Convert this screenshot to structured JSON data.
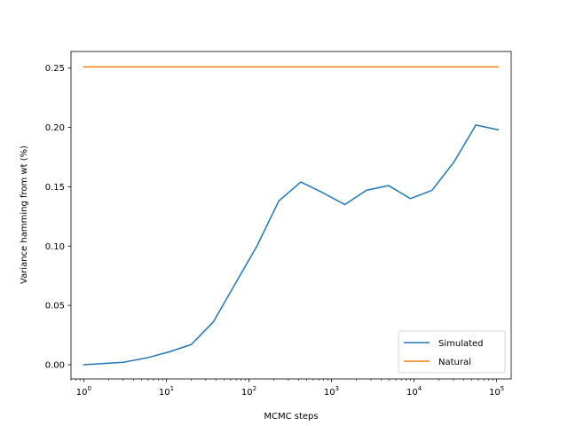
{
  "chart_data": {
    "type": "line",
    "xlabel": "MCMC steps",
    "ylabel": "Variance hamming from wt (%)",
    "xscale": "log",
    "xlim": [
      0.7,
      150000
    ],
    "ylim": [
      -0.012,
      0.264
    ],
    "x_ticks": [
      {
        "value": 1,
        "base": "10",
        "exp": "0"
      },
      {
        "value": 10,
        "base": "10",
        "exp": "1"
      },
      {
        "value": 100,
        "base": "10",
        "exp": "2"
      },
      {
        "value": 1000,
        "base": "10",
        "exp": "3"
      },
      {
        "value": 10000,
        "base": "10",
        "exp": "4"
      },
      {
        "value": 100000,
        "base": "10",
        "exp": "5"
      }
    ],
    "y_ticks": [
      {
        "value": 0.0,
        "label": "0.00"
      },
      {
        "value": 0.05,
        "label": "0.05"
      },
      {
        "value": 0.1,
        "label": "0.10"
      },
      {
        "value": 0.15,
        "label": "0.15"
      },
      {
        "value": 0.2,
        "label": "0.20"
      },
      {
        "value": 0.25,
        "label": "0.25"
      }
    ],
    "grid": false,
    "legend_position": "lower-right",
    "series": [
      {
        "name": "Simulated",
        "color": "#1f77b4",
        "x": [
          1,
          3,
          6,
          11,
          20,
          37,
          68,
          125,
          230,
          425,
          780,
          1450,
          2650,
          4900,
          9000,
          16500,
          30500,
          56000,
          104000
        ],
        "y": [
          0.0,
          0.002,
          0.006,
          0.011,
          0.017,
          0.036,
          0.068,
          0.1,
          0.138,
          0.154,
          0.145,
          0.135,
          0.147,
          0.151,
          0.14,
          0.147,
          0.171,
          0.202,
          0.198
        ]
      },
      {
        "name": "Natural",
        "color": "#ff7f0e",
        "x": [
          1,
          104000
        ],
        "y": [
          0.251,
          0.251
        ]
      }
    ]
  }
}
